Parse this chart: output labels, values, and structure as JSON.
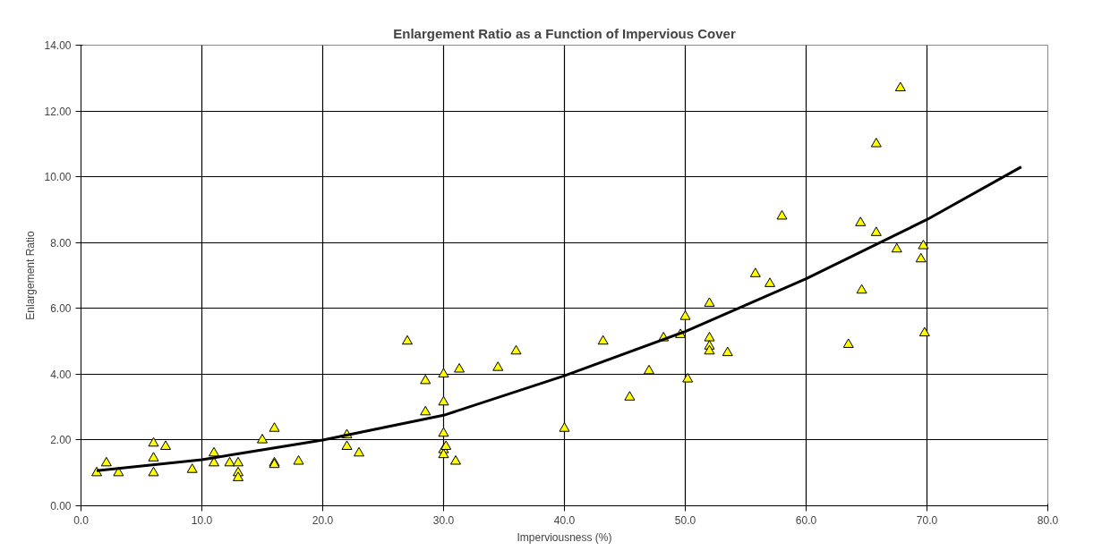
{
  "chart_data": {
    "type": "scatter",
    "title": "Enlargement Ratio as a Function of Impervious Cover",
    "xlabel": "Imperviousness (%)",
    "ylabel": "Enlargement Ratio",
    "xlim": [
      0,
      80
    ],
    "ylim": [
      0,
      14
    ],
    "xticks": [
      {
        "value": 0,
        "label": "0.0"
      },
      {
        "value": 10,
        "label": "10.0"
      },
      {
        "value": 20,
        "label": "20.0"
      },
      {
        "value": 30,
        "label": "30.0"
      },
      {
        "value": 40,
        "label": "40.0"
      },
      {
        "value": 50,
        "label": "50.0"
      },
      {
        "value": 60,
        "label": "60.0"
      },
      {
        "value": 70,
        "label": "70.0"
      },
      {
        "value": 80,
        "label": "80.0"
      }
    ],
    "yticks": [
      {
        "value": 0,
        "label": "0.00"
      },
      {
        "value": 2,
        "label": "2.00"
      },
      {
        "value": 4,
        "label": "4.00"
      },
      {
        "value": 6,
        "label": "6.00"
      },
      {
        "value": 8,
        "label": "8.00"
      },
      {
        "value": 10,
        "label": "10.00"
      },
      {
        "value": 12,
        "label": "12.00"
      },
      {
        "value": 14,
        "label": "14.00"
      }
    ],
    "grid": true,
    "marker": "triangle",
    "series": [
      {
        "color": "#ffff00",
        "x": [
          1.3,
          2.1,
          3.1,
          6,
          6,
          6,
          7,
          9.2,
          11,
          11,
          12.3,
          13,
          13,
          13,
          15,
          16,
          16,
          16,
          18,
          22,
          22,
          23,
          27,
          28.5,
          28.5,
          30,
          30,
          30,
          30,
          30,
          30.2,
          31,
          31.3,
          34.5,
          36,
          40,
          43.2,
          45.4,
          47,
          48.2,
          49.6,
          50,
          50.2,
          52,
          52,
          52,
          52,
          53.5,
          55.8,
          57,
          58,
          63.5,
          64.5,
          64.6,
          65.8,
          65.8,
          67.5,
          67.8,
          69.5,
          69.7,
          69.8
        ],
        "values": [
          1.0,
          1.3,
          1.0,
          1.9,
          1.45,
          1.0,
          1.8,
          1.1,
          1.6,
          1.3,
          1.3,
          1.3,
          1.0,
          0.85,
          2.0,
          2.35,
          1.3,
          1.25,
          1.35,
          2.15,
          1.8,
          1.6,
          5.0,
          3.8,
          2.85,
          4.0,
          3.15,
          2.2,
          1.7,
          1.55,
          1.8,
          1.35,
          4.15,
          4.2,
          4.7,
          2.35,
          5.0,
          3.3,
          4.1,
          5.1,
          5.2,
          5.75,
          3.85,
          6.15,
          5.1,
          4.85,
          4.7,
          4.65,
          7.05,
          6.75,
          8.8,
          4.9,
          8.6,
          6.55,
          11.0,
          8.3,
          7.8,
          12.7,
          7.5,
          7.9,
          5.25
        ]
      },
      {
        "type": "line",
        "color": "#000000",
        "marker": "none",
        "x": [
          1.3,
          10,
          20,
          30,
          40,
          50,
          60,
          70,
          77.8
        ],
        "values": [
          1.07,
          1.4,
          2.0,
          2.75,
          3.95,
          5.3,
          6.9,
          8.7,
          10.3
        ]
      }
    ]
  }
}
